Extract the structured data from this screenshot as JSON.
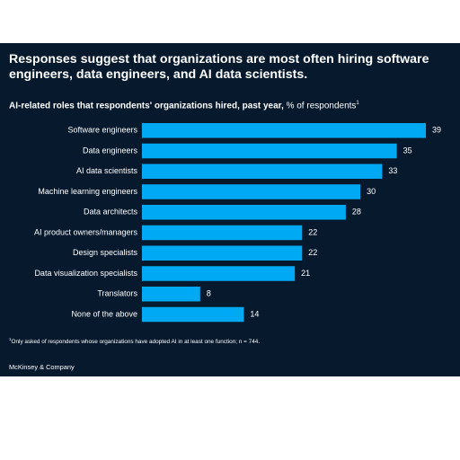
{
  "headline": "Responses suggest that organizations are most often hiring software engineers, data engineers, and AI data scientists.",
  "subtitle_bold": "AI-related roles that respondents' organizations hired, past year,",
  "subtitle_unit": " % of respondents",
  "subtitle_mark": "1",
  "footnote_mark": "1",
  "footnote": "Only asked of respondents whose organizations have adopted AI in at least one function; n = 744.",
  "brand": "McKinsey & Company",
  "colors": {
    "background": "#06192d",
    "bar": "#00a9f4",
    "text": "#ffffff"
  },
  "chart_data": {
    "type": "bar",
    "orientation": "horizontal",
    "categories": [
      "Software engineers",
      "Data engineers",
      "AI data scientists",
      "Machine learning engineers",
      "Data architects",
      "AI product owners/managers",
      "Design specialists",
      "Data visualization specialists",
      "Translators",
      "None of the above"
    ],
    "values": [
      39,
      35,
      33,
      30,
      28,
      22,
      22,
      21,
      8,
      14
    ],
    "xlim": [
      0,
      39
    ],
    "data_labels": true,
    "grid": false,
    "legend": false
  }
}
